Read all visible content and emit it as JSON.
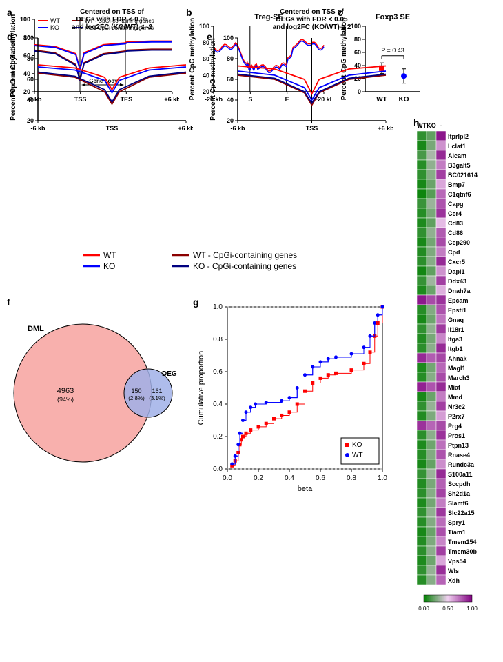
{
  "colors": {
    "wt": "#ff0000",
    "ko": "#0000ff",
    "wt_cpgi": "#8b0000",
    "ko_cpgi": "#000080",
    "venn_dml": "#f8b0ad",
    "venn_deg": "#a0b0e8",
    "venn_overlap": "#c090c0",
    "heatmap_low": "#008000",
    "heatmap_mid": "#f0d0f0",
    "heatmap_high": "#800080"
  },
  "panel_a": {
    "label": "a",
    "legend": {
      "wt": "WT",
      "ko": "KO",
      "wt_cpgi": "WT - CpGi-containing genes",
      "ko_cpgi": "KO - CpGi-containing genes"
    },
    "ylabel": "Percent CpG methylation",
    "ylim": [
      20,
      100
    ],
    "yticks": [
      20,
      40,
      60,
      80,
      100
    ],
    "xticks": [
      "-6 kb",
      "TSS",
      "TES",
      "+6 kb"
    ],
    "gene_body_label": "Gene body",
    "series": {
      "wt": [
        [
          0,
          72
        ],
        [
          15,
          70
        ],
        [
          30,
          62
        ],
        [
          33,
          45
        ],
        [
          36,
          63
        ],
        [
          50,
          72
        ],
        [
          66,
          74
        ],
        [
          67,
          75
        ],
        [
          85,
          76
        ],
        [
          100,
          76
        ]
      ],
      "ko": [
        [
          0,
          71
        ],
        [
          15,
          69
        ],
        [
          30,
          61
        ],
        [
          33,
          44
        ],
        [
          36,
          62
        ],
        [
          50,
          71
        ],
        [
          66,
          73
        ],
        [
          67,
          74
        ],
        [
          85,
          75
        ],
        [
          100,
          75
        ]
      ],
      "wt_cpgi": [
        [
          0,
          66
        ],
        [
          15,
          63
        ],
        [
          30,
          50
        ],
        [
          33,
          33
        ],
        [
          36,
          52
        ],
        [
          50,
          62
        ],
        [
          66,
          65
        ],
        [
          67,
          66
        ],
        [
          85,
          67
        ],
        [
          100,
          67
        ]
      ],
      "ko_cpgi": [
        [
          0,
          65
        ],
        [
          15,
          62
        ],
        [
          30,
          49
        ],
        [
          33,
          32
        ],
        [
          36,
          51
        ],
        [
          50,
          61
        ],
        [
          66,
          64
        ],
        [
          67,
          65
        ],
        [
          85,
          66
        ],
        [
          100,
          66
        ]
      ]
    }
  },
  "panel_b": {
    "label": "b",
    "title": "Treg-SE",
    "ylabel": "Percent CpG methylation",
    "ylim": [
      20,
      100
    ],
    "yticks": [
      20,
      40,
      60,
      80,
      100
    ],
    "xticks": [
      "-20 kb",
      "S",
      "E",
      "+20 kb"
    ],
    "series": {
      "wt": [
        [
          0,
          72
        ],
        [
          10,
          75
        ],
        [
          20,
          78
        ],
        [
          30,
          55
        ],
        [
          33,
          50
        ],
        [
          40,
          52
        ],
        [
          50,
          48
        ],
        [
          60,
          50
        ],
        [
          66,
          55
        ],
        [
          75,
          80
        ],
        [
          85,
          82
        ],
        [
          95,
          75
        ],
        [
          100,
          77
        ]
      ],
      "ko": [
        [
          0,
          70
        ],
        [
          10,
          73
        ],
        [
          20,
          76
        ],
        [
          30,
          53
        ],
        [
          33,
          48
        ],
        [
          40,
          50
        ],
        [
          50,
          46
        ],
        [
          60,
          48
        ],
        [
          66,
          53
        ],
        [
          75,
          78
        ],
        [
          85,
          80
        ],
        [
          95,
          73
        ],
        [
          100,
          75
        ]
      ]
    }
  },
  "panel_c": {
    "label": "c",
    "title": "Foxp3 SE",
    "ylabel": "Percent CpG methylation",
    "ylim": [
      0,
      100
    ],
    "yticks": [
      0,
      20,
      40,
      60,
      80,
      100
    ],
    "xcats": [
      "WT",
      "KO"
    ],
    "pvalue": "P = 0.43",
    "points": {
      "wt": {
        "mean": 36,
        "err": 8,
        "color": "#ff0000"
      },
      "ko": {
        "mean": 24,
        "err": 11,
        "color": "#0000ff"
      }
    }
  },
  "panel_d": {
    "label": "d",
    "title": "Centered on TSS of\nDEGs with FDR < 0.05\nand log2FC (KO/WT) ≤ -2",
    "ylabel": "Percent CpG methylation",
    "ylim": [
      20,
      100
    ],
    "yticks": [
      20,
      40,
      60,
      80,
      100
    ],
    "xticks": [
      "-6 kb",
      "TSS",
      "+6 kb"
    ],
    "series": {
      "wt": [
        [
          0,
          74
        ],
        [
          25,
          71
        ],
        [
          45,
          62
        ],
        [
          50,
          50
        ],
        [
          55,
          62
        ],
        [
          75,
          71
        ],
        [
          100,
          74
        ]
      ],
      "ko": [
        [
          0,
          72
        ],
        [
          25,
          69
        ],
        [
          45,
          59
        ],
        [
          50,
          47
        ],
        [
          55,
          59
        ],
        [
          75,
          69
        ],
        [
          100,
          72
        ]
      ],
      "wt_cpgi": [
        [
          0,
          66
        ],
        [
          25,
          62
        ],
        [
          45,
          48
        ],
        [
          50,
          36
        ],
        [
          55,
          48
        ],
        [
          75,
          62
        ],
        [
          100,
          66
        ]
      ],
      "ko_cpgi": [
        [
          0,
          67
        ],
        [
          25,
          63
        ],
        [
          45,
          50
        ],
        [
          50,
          38
        ],
        [
          55,
          50
        ],
        [
          75,
          63
        ],
        [
          100,
          67
        ]
      ]
    }
  },
  "panel_e": {
    "label": "e",
    "title": "Centered on TSS of\nDEGs with FDR < 0.05\nand log2FC (KO/WT) ≥ 2",
    "ylabel": "Percent CpG methylation",
    "ylim": [
      20,
      100
    ],
    "yticks": [
      20,
      40,
      60,
      80,
      100
    ],
    "xticks": [
      "-6 kb",
      "TSS",
      "+6 kb"
    ],
    "series": {
      "wt": [
        [
          0,
          73
        ],
        [
          25,
          70
        ],
        [
          45,
          60
        ],
        [
          50,
          46
        ],
        [
          55,
          60
        ],
        [
          75,
          70
        ],
        [
          100,
          73
        ]
      ],
      "ko": [
        [
          0,
          68
        ],
        [
          25,
          64
        ],
        [
          45,
          52
        ],
        [
          50,
          40
        ],
        [
          55,
          52
        ],
        [
          75,
          64
        ],
        [
          100,
          68
        ]
      ],
      "wt_cpgi": [
        [
          0,
          64
        ],
        [
          25,
          60
        ],
        [
          45,
          47
        ],
        [
          50,
          35
        ],
        [
          55,
          47
        ],
        [
          75,
          60
        ],
        [
          100,
          64
        ]
      ],
      "ko_cpgi": [
        [
          0,
          65
        ],
        [
          25,
          61
        ],
        [
          45,
          48
        ],
        [
          50,
          37
        ],
        [
          55,
          48
        ],
        [
          75,
          61
        ],
        [
          100,
          65
        ]
      ]
    }
  },
  "shared_legend": {
    "wt": "WT",
    "ko": "KO",
    "wt_cpgi": "WT - CpGi-containing genes",
    "ko_cpgi": "KO - CpGi-containing genes"
  },
  "panel_f": {
    "label": "f",
    "dml_label": "DML",
    "dml_n": "4963",
    "dml_pct": "(94%)",
    "overlap_n": "150",
    "overlap_pct": "(2.8%)",
    "deg_label": "DEG",
    "deg_n": "161",
    "deg_pct": "(3.1%)"
  },
  "panel_g": {
    "label": "g",
    "ylabel": "Cumulative proportion",
    "xlabel": "beta",
    "xlim": [
      0,
      1
    ],
    "ylim": [
      0,
      1
    ],
    "xticks": [
      0.0,
      0.2,
      0.4,
      0.6,
      0.8,
      1.0
    ],
    "yticks": [
      0.0,
      0.2,
      0.4,
      0.6,
      0.8,
      1.0
    ],
    "legend": {
      "ko": "KO",
      "wt": "WT"
    },
    "series": {
      "ko": [
        [
          0.03,
          0.02
        ],
        [
          0.05,
          0.05
        ],
        [
          0.07,
          0.1
        ],
        [
          0.08,
          0.15
        ],
        [
          0.09,
          0.18
        ],
        [
          0.1,
          0.2
        ],
        [
          0.12,
          0.22
        ],
        [
          0.15,
          0.24
        ],
        [
          0.2,
          0.26
        ],
        [
          0.25,
          0.28
        ],
        [
          0.3,
          0.31
        ],
        [
          0.35,
          0.33
        ],
        [
          0.4,
          0.35
        ],
        [
          0.45,
          0.4
        ],
        [
          0.5,
          0.48
        ],
        [
          0.55,
          0.53
        ],
        [
          0.6,
          0.56
        ],
        [
          0.65,
          0.58
        ],
        [
          0.7,
          0.59
        ],
        [
          0.8,
          0.61
        ],
        [
          0.88,
          0.65
        ],
        [
          0.92,
          0.72
        ],
        [
          0.95,
          0.82
        ],
        [
          0.97,
          0.9
        ],
        [
          1.0,
          1.0
        ]
      ],
      "wt": [
        [
          0.03,
          0.03
        ],
        [
          0.05,
          0.08
        ],
        [
          0.07,
          0.15
        ],
        [
          0.08,
          0.22
        ],
        [
          0.1,
          0.3
        ],
        [
          0.12,
          0.35
        ],
        [
          0.15,
          0.38
        ],
        [
          0.18,
          0.4
        ],
        [
          0.25,
          0.41
        ],
        [
          0.35,
          0.42
        ],
        [
          0.4,
          0.44
        ],
        [
          0.45,
          0.5
        ],
        [
          0.5,
          0.58
        ],
        [
          0.55,
          0.63
        ],
        [
          0.6,
          0.66
        ],
        [
          0.65,
          0.68
        ],
        [
          0.7,
          0.69
        ],
        [
          0.8,
          0.71
        ],
        [
          0.88,
          0.75
        ],
        [
          0.92,
          0.82
        ],
        [
          0.95,
          0.9
        ],
        [
          0.97,
          0.95
        ],
        [
          1.0,
          1.0
        ]
      ]
    }
  },
  "panel_h": {
    "label": "h",
    "columns": [
      "WT",
      "KO",
      "-"
    ],
    "genes": [
      "Itprlpl2",
      "Lclat1",
      "Alcam",
      "B3galt5",
      "BC021614",
      "Bmp7",
      "C1qtnf6",
      "Capg",
      "Ccr4",
      "Cd83",
      "Cd86",
      "Cep290",
      "Cpd",
      "Cxcr5",
      "Dapl1",
      "Ddx43",
      "Dnah7a",
      "Epcam",
      "Epsti1",
      "Gnaq",
      "Il18r1",
      "Itga3",
      "Itgb1",
      "Ahnak",
      "Magl1",
      "March3",
      "Miat",
      "Mmd",
      "Nr3c2",
      "P2rx7",
      "Prg4",
      "Pros1",
      "Ptpn13",
      "Rnase4",
      "Rundc3a",
      "S100a11",
      "Sccpdh",
      "Sh2d1a",
      "Slamf6",
      "Slc22a15",
      "Spry1",
      "Tiam1",
      "Tmem154",
      "Tmem30b",
      "Vps54",
      "Wls",
      "Xdh"
    ],
    "data": [
      [
        0.1,
        0.2,
        0.95
      ],
      [
        0.05,
        0.25,
        0.65
      ],
      [
        0.15,
        0.35,
        0.9
      ],
      [
        0.08,
        0.3,
        0.7
      ],
      [
        0.1,
        0.28,
        0.85
      ],
      [
        0.05,
        0.22,
        0.6
      ],
      [
        0.03,
        0.18,
        0.75
      ],
      [
        0.12,
        0.32,
        0.8
      ],
      [
        0.08,
        0.25,
        0.88
      ],
      [
        0.06,
        0.2,
        0.55
      ],
      [
        0.1,
        0.3,
        0.78
      ],
      [
        0.05,
        0.24,
        0.82
      ],
      [
        0.07,
        0.26,
        0.7
      ],
      [
        0.09,
        0.28,
        0.9
      ],
      [
        0.04,
        0.2,
        0.65
      ],
      [
        0.11,
        0.33,
        0.85
      ],
      [
        0.06,
        0.22,
        0.58
      ],
      [
        0.94,
        0.82,
        0.88
      ],
      [
        0.08,
        0.27,
        0.8
      ],
      [
        0.05,
        0.23,
        0.72
      ],
      [
        0.1,
        0.3,
        0.86
      ],
      [
        0.07,
        0.25,
        0.68
      ],
      [
        0.09,
        0.29,
        0.9
      ],
      [
        0.9,
        0.78,
        0.83
      ],
      [
        0.06,
        0.24,
        0.75
      ],
      [
        0.08,
        0.28,
        0.82
      ],
      [
        0.92,
        0.8,
        0.9
      ],
      [
        0.05,
        0.22,
        0.7
      ],
      [
        0.1,
        0.31,
        0.85
      ],
      [
        0.07,
        0.26,
        0.62
      ],
      [
        0.88,
        0.76,
        0.82
      ],
      [
        0.09,
        0.29,
        0.88
      ],
      [
        0.06,
        0.23,
        0.73
      ],
      [
        0.08,
        0.27,
        0.8
      ],
      [
        0.05,
        0.21,
        0.66
      ],
      [
        0.11,
        0.32,
        0.9
      ],
      [
        0.07,
        0.25,
        0.77
      ],
      [
        0.09,
        0.28,
        0.84
      ],
      [
        0.06,
        0.24,
        0.7
      ],
      [
        0.1,
        0.3,
        0.87
      ],
      [
        0.08,
        0.27,
        0.74
      ],
      [
        0.05,
        0.22,
        0.81
      ],
      [
        0.07,
        0.26,
        0.68
      ],
      [
        0.09,
        0.29,
        0.85
      ],
      [
        0.06,
        0.23,
        0.6
      ],
      [
        0.1,
        0.31,
        0.89
      ],
      [
        0.08,
        0.28,
        0.76
      ]
    ],
    "scale_labels": [
      "0.00",
      "0.50",
      "1.00"
    ]
  }
}
